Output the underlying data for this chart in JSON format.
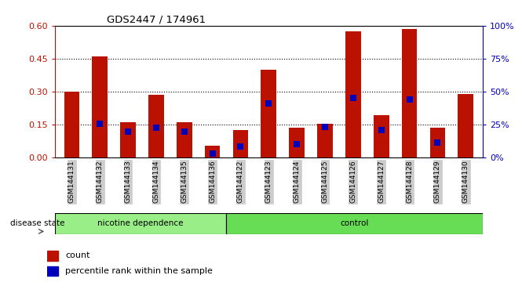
{
  "title": "GDS2447 / 174961",
  "categories": [
    "GSM144131",
    "GSM144132",
    "GSM144133",
    "GSM144134",
    "GSM144135",
    "GSM144136",
    "GSM144122",
    "GSM144123",
    "GSM144124",
    "GSM144125",
    "GSM144126",
    "GSM144127",
    "GSM144128",
    "GSM144129",
    "GSM144130"
  ],
  "count_values": [
    0.3,
    0.46,
    0.16,
    0.285,
    0.16,
    0.055,
    0.125,
    0.4,
    0.135,
    0.155,
    0.575,
    0.195,
    0.585,
    0.135,
    0.29
  ],
  "percentile_values": [
    null,
    0.155,
    0.12,
    0.135,
    0.12,
    0.02,
    0.05,
    0.245,
    0.06,
    0.14,
    0.27,
    0.125,
    0.265,
    0.07,
    null
  ],
  "group1_label": "nicotine dependence",
  "group2_label": "control",
  "group1_count": 6,
  "group2_count": 9,
  "ylim_left": [
    0,
    0.6
  ],
  "ylim_right": [
    0,
    100
  ],
  "yticks_left": [
    0,
    0.15,
    0.3,
    0.45,
    0.6
  ],
  "yticks_right": [
    0,
    25,
    50,
    75,
    100
  ],
  "bar_color": "#BB1100",
  "dot_color": "#0000BB",
  "group1_bg": "#99EE88",
  "group2_bg": "#66DD55",
  "xticklabel_bg": "#CCCCCC",
  "legend_count_label": "count",
  "legend_pct_label": "percentile rank within the sample",
  "bar_width": 0.55,
  "dot_marker_size": 28
}
